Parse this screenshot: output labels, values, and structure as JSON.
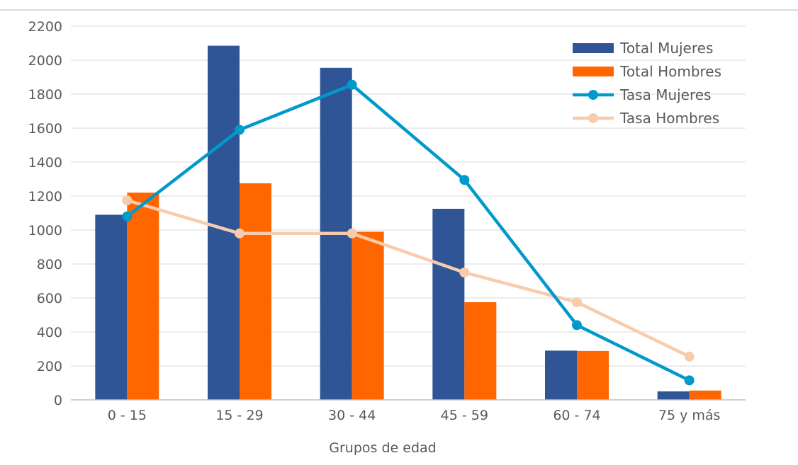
{
  "chart_data": {
    "type": "bar",
    "categories": [
      "0 - 15",
      "15 - 29",
      "30 - 44",
      "45 - 59",
      "60 - 74",
      "75 y más"
    ],
    "xlabel": "Grupos de edad",
    "ylabel": "",
    "ylim": [
      0,
      2200
    ],
    "yticks": [
      0,
      200,
      400,
      600,
      800,
      1000,
      1200,
      1400,
      1600,
      1800,
      2000,
      2200
    ],
    "grid": true,
    "legend_position": "top-right",
    "series": [
      {
        "name": "Total Mujeres",
        "kind": "bar",
        "color": "#2f5597",
        "values": [
          1090,
          2085,
          1955,
          1125,
          290,
          50
        ]
      },
      {
        "name": "Total Hombres",
        "kind": "bar",
        "color": "#ff6600",
        "values": [
          1220,
          1275,
          990,
          575,
          288,
          55
        ]
      },
      {
        "name": "Tasa Mujeres",
        "kind": "line",
        "color": "#0099cc",
        "values": [
          1080,
          1590,
          1855,
          1295,
          440,
          115
        ]
      },
      {
        "name": "Tasa Hombres",
        "kind": "line",
        "color": "#f8cbad",
        "values": [
          1175,
          980,
          980,
          750,
          575,
          255
        ]
      }
    ]
  }
}
